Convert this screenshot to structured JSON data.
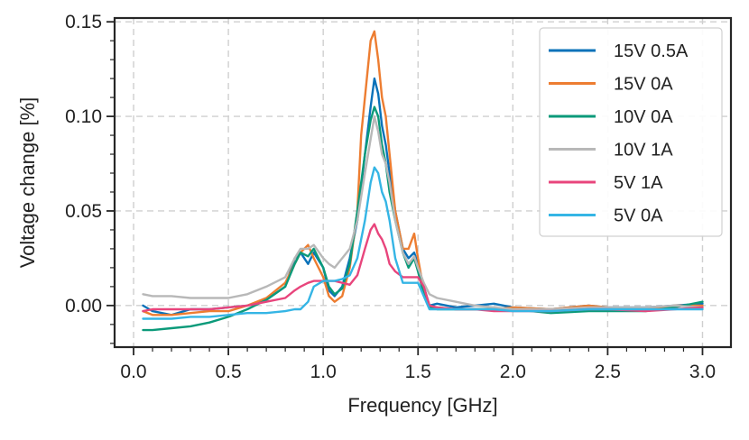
{
  "chart_data": {
    "type": "line",
    "title": "",
    "xlabel": "Frequency [GHz]",
    "ylabel": "Voltage change [%]",
    "xlim": [
      -0.1,
      3.15
    ],
    "ylim": [
      -0.022,
      0.152
    ],
    "grid": true,
    "legend_position": "top-right",
    "x_ticks": [
      0.0,
      0.5,
      1.0,
      1.5,
      2.0,
      2.5,
      3.0
    ],
    "x_tick_labels": [
      "0.0",
      "0.5",
      "1.0",
      "1.5",
      "2.0",
      "2.5",
      "3.0"
    ],
    "y_ticks": [
      0.0,
      0.05,
      0.1,
      0.15
    ],
    "y_tick_labels": [
      "0.00",
      "0.05",
      "0.10",
      "0.15"
    ],
    "series": [
      {
        "name": "15V 0.5A",
        "color": "#0a72b9",
        "points": [
          [
            0.05,
            0.0
          ],
          [
            0.1,
            -0.003
          ],
          [
            0.2,
            -0.005
          ],
          [
            0.3,
            -0.002
          ],
          [
            0.4,
            -0.002
          ],
          [
            0.5,
            -0.001
          ],
          [
            0.6,
            0.0
          ],
          [
            0.7,
            0.003
          ],
          [
            0.8,
            0.01
          ],
          [
            0.85,
            0.025
          ],
          [
            0.88,
            0.028
          ],
          [
            0.92,
            0.022
          ],
          [
            0.95,
            0.028
          ],
          [
            1.0,
            0.02
          ],
          [
            1.03,
            0.008
          ],
          [
            1.06,
            0.005
          ],
          [
            1.1,
            0.01
          ],
          [
            1.14,
            0.025
          ],
          [
            1.18,
            0.045
          ],
          [
            1.22,
            0.08
          ],
          [
            1.25,
            0.105
          ],
          [
            1.27,
            0.12
          ],
          [
            1.29,
            0.112
          ],
          [
            1.31,
            0.095
          ],
          [
            1.33,
            0.085
          ],
          [
            1.35,
            0.07
          ],
          [
            1.38,
            0.05
          ],
          [
            1.42,
            0.03
          ],
          [
            1.45,
            0.025
          ],
          [
            1.48,
            0.028
          ],
          [
            1.5,
            0.022
          ],
          [
            1.53,
            0.01
          ],
          [
            1.56,
            0.0
          ],
          [
            1.6,
            0.001
          ],
          [
            1.7,
            -0.001
          ],
          [
            1.8,
            0.0
          ],
          [
            1.9,
            0.001
          ],
          [
            2.0,
            -0.001
          ],
          [
            2.2,
            -0.002
          ],
          [
            2.4,
            0.0
          ],
          [
            2.5,
            -0.001
          ],
          [
            2.7,
            -0.001
          ],
          [
            2.85,
            0.0
          ],
          [
            3.0,
            0.001
          ]
        ]
      },
      {
        "name": "15V 0A",
        "color": "#ed7d31",
        "points": [
          [
            0.05,
            -0.003
          ],
          [
            0.1,
            -0.005
          ],
          [
            0.2,
            -0.005
          ],
          [
            0.3,
            -0.004
          ],
          [
            0.4,
            -0.003
          ],
          [
            0.5,
            -0.003
          ],
          [
            0.6,
            0.0
          ],
          [
            0.7,
            0.004
          ],
          [
            0.8,
            0.012
          ],
          [
            0.85,
            0.022
          ],
          [
            0.88,
            0.028
          ],
          [
            0.92,
            0.032
          ],
          [
            0.95,
            0.025
          ],
          [
            1.0,
            0.015
          ],
          [
            1.03,
            0.005
          ],
          [
            1.06,
            0.002
          ],
          [
            1.1,
            0.005
          ],
          [
            1.14,
            0.02
          ],
          [
            1.18,
            0.05
          ],
          [
            1.2,
            0.09
          ],
          [
            1.23,
            0.12
          ],
          [
            1.25,
            0.14
          ],
          [
            1.27,
            0.145
          ],
          [
            1.29,
            0.13
          ],
          [
            1.31,
            0.11
          ],
          [
            1.33,
            0.1
          ],
          [
            1.35,
            0.08
          ],
          [
            1.38,
            0.05
          ],
          [
            1.42,
            0.03
          ],
          [
            1.45,
            0.03
          ],
          [
            1.48,
            0.038
          ],
          [
            1.5,
            0.025
          ],
          [
            1.53,
            0.008
          ],
          [
            1.56,
            -0.001
          ],
          [
            1.6,
            -0.001
          ],
          [
            1.7,
            -0.002
          ],
          [
            1.8,
            -0.002
          ],
          [
            1.9,
            -0.002
          ],
          [
            2.0,
            -0.001
          ],
          [
            2.2,
            -0.002
          ],
          [
            2.4,
            0.0
          ],
          [
            2.5,
            -0.001
          ],
          [
            2.7,
            -0.002
          ],
          [
            2.85,
            0.0
          ],
          [
            3.0,
            0.0
          ]
        ]
      },
      {
        "name": "10V 0A",
        "color": "#0b9a7a",
        "points": [
          [
            0.05,
            -0.013
          ],
          [
            0.1,
            -0.013
          ],
          [
            0.2,
            -0.012
          ],
          [
            0.3,
            -0.011
          ],
          [
            0.4,
            -0.009
          ],
          [
            0.5,
            -0.006
          ],
          [
            0.6,
            -0.002
          ],
          [
            0.7,
            0.003
          ],
          [
            0.8,
            0.01
          ],
          [
            0.85,
            0.022
          ],
          [
            0.88,
            0.028
          ],
          [
            0.92,
            0.026
          ],
          [
            0.95,
            0.03
          ],
          [
            1.0,
            0.02
          ],
          [
            1.03,
            0.01
          ],
          [
            1.06,
            0.006
          ],
          [
            1.1,
            0.009
          ],
          [
            1.14,
            0.022
          ],
          [
            1.18,
            0.05
          ],
          [
            1.22,
            0.08
          ],
          [
            1.25,
            0.098
          ],
          [
            1.27,
            0.105
          ],
          [
            1.29,
            0.1
          ],
          [
            1.31,
            0.085
          ],
          [
            1.33,
            0.075
          ],
          [
            1.35,
            0.06
          ],
          [
            1.38,
            0.045
          ],
          [
            1.42,
            0.028
          ],
          [
            1.45,
            0.02
          ],
          [
            1.48,
            0.025
          ],
          [
            1.5,
            0.018
          ],
          [
            1.53,
            0.006
          ],
          [
            1.56,
            -0.001
          ],
          [
            1.6,
            -0.002
          ],
          [
            1.7,
            -0.002
          ],
          [
            1.8,
            -0.002
          ],
          [
            1.9,
            -0.002
          ],
          [
            2.0,
            -0.002
          ],
          [
            2.2,
            -0.004
          ],
          [
            2.4,
            -0.003
          ],
          [
            2.5,
            -0.003
          ],
          [
            2.7,
            -0.003
          ],
          [
            2.85,
            -0.001
          ],
          [
            3.0,
            0.002
          ]
        ]
      },
      {
        "name": "10V 1A",
        "color": "#b8b8b8",
        "points": [
          [
            0.05,
            0.006
          ],
          [
            0.1,
            0.005
          ],
          [
            0.2,
            0.005
          ],
          [
            0.3,
            0.004
          ],
          [
            0.4,
            0.004
          ],
          [
            0.5,
            0.004
          ],
          [
            0.6,
            0.006
          ],
          [
            0.7,
            0.01
          ],
          [
            0.8,
            0.015
          ],
          [
            0.85,
            0.025
          ],
          [
            0.88,
            0.03
          ],
          [
            0.92,
            0.03
          ],
          [
            0.95,
            0.032
          ],
          [
            1.0,
            0.025
          ],
          [
            1.03,
            0.022
          ],
          [
            1.06,
            0.02
          ],
          [
            1.1,
            0.025
          ],
          [
            1.14,
            0.03
          ],
          [
            1.18,
            0.045
          ],
          [
            1.22,
            0.07
          ],
          [
            1.25,
            0.088
          ],
          [
            1.27,
            0.1
          ],
          [
            1.29,
            0.092
          ],
          [
            1.31,
            0.08
          ],
          [
            1.33,
            0.075
          ],
          [
            1.35,
            0.065
          ],
          [
            1.38,
            0.045
          ],
          [
            1.42,
            0.028
          ],
          [
            1.45,
            0.022
          ],
          [
            1.48,
            0.026
          ],
          [
            1.5,
            0.02
          ],
          [
            1.53,
            0.012
          ],
          [
            1.56,
            0.006
          ],
          [
            1.6,
            0.004
          ],
          [
            1.7,
            0.002
          ],
          [
            1.8,
            0.0
          ],
          [
            1.9,
            -0.001
          ],
          [
            2.0,
            -0.002
          ],
          [
            2.2,
            -0.002
          ],
          [
            2.4,
            -0.001
          ],
          [
            2.5,
            -0.001
          ],
          [
            2.7,
            -0.001
          ],
          [
            2.85,
            0.0
          ],
          [
            3.0,
            -0.001
          ]
        ]
      },
      {
        "name": "5V 1A",
        "color": "#e8457c",
        "points": [
          [
            0.05,
            -0.003
          ],
          [
            0.1,
            -0.002
          ],
          [
            0.2,
            -0.002
          ],
          [
            0.3,
            -0.002
          ],
          [
            0.4,
            -0.002
          ],
          [
            0.5,
            -0.001
          ],
          [
            0.6,
            0.0
          ],
          [
            0.7,
            0.002
          ],
          [
            0.8,
            0.004
          ],
          [
            0.85,
            0.008
          ],
          [
            0.88,
            0.01
          ],
          [
            0.92,
            0.012
          ],
          [
            0.95,
            0.013
          ],
          [
            1.0,
            0.013
          ],
          [
            1.03,
            0.013
          ],
          [
            1.06,
            0.013
          ],
          [
            1.1,
            0.012
          ],
          [
            1.14,
            0.011
          ],
          [
            1.18,
            0.016
          ],
          [
            1.22,
            0.03
          ],
          [
            1.25,
            0.04
          ],
          [
            1.27,
            0.043
          ],
          [
            1.29,
            0.038
          ],
          [
            1.31,
            0.035
          ],
          [
            1.33,
            0.03
          ],
          [
            1.35,
            0.022
          ],
          [
            1.38,
            0.018
          ],
          [
            1.42,
            0.015
          ],
          [
            1.45,
            0.015
          ],
          [
            1.48,
            0.015
          ],
          [
            1.5,
            0.015
          ],
          [
            1.53,
            0.01
          ],
          [
            1.56,
            0.0
          ],
          [
            1.6,
            -0.001
          ],
          [
            1.7,
            -0.002
          ],
          [
            1.8,
            -0.002
          ],
          [
            1.9,
            -0.003
          ],
          [
            2.0,
            -0.003
          ],
          [
            2.2,
            -0.003
          ],
          [
            2.4,
            -0.002
          ],
          [
            2.5,
            -0.002
          ],
          [
            2.7,
            -0.003
          ],
          [
            2.85,
            -0.002
          ],
          [
            3.0,
            -0.001
          ]
        ]
      },
      {
        "name": "5V 0A",
        "color": "#35b5e5",
        "points": [
          [
            0.05,
            -0.007
          ],
          [
            0.1,
            -0.007
          ],
          [
            0.2,
            -0.007
          ],
          [
            0.3,
            -0.006
          ],
          [
            0.4,
            -0.006
          ],
          [
            0.5,
            -0.005
          ],
          [
            0.6,
            -0.004
          ],
          [
            0.7,
            -0.004
          ],
          [
            0.8,
            -0.003
          ],
          [
            0.85,
            -0.002
          ],
          [
            0.88,
            -0.002
          ],
          [
            0.92,
            0.002
          ],
          [
            0.95,
            0.01
          ],
          [
            1.0,
            0.013
          ],
          [
            1.03,
            0.013
          ],
          [
            1.06,
            0.013
          ],
          [
            1.1,
            0.014
          ],
          [
            1.14,
            0.016
          ],
          [
            1.18,
            0.025
          ],
          [
            1.22,
            0.045
          ],
          [
            1.25,
            0.065
          ],
          [
            1.27,
            0.073
          ],
          [
            1.29,
            0.07
          ],
          [
            1.31,
            0.06
          ],
          [
            1.33,
            0.055
          ],
          [
            1.35,
            0.045
          ],
          [
            1.38,
            0.025
          ],
          [
            1.42,
            0.012
          ],
          [
            1.45,
            0.012
          ],
          [
            1.48,
            0.012
          ],
          [
            1.5,
            0.012
          ],
          [
            1.53,
            0.005
          ],
          [
            1.56,
            -0.002
          ],
          [
            1.6,
            -0.002
          ],
          [
            1.7,
            -0.002
          ],
          [
            1.8,
            -0.002
          ],
          [
            1.9,
            -0.002
          ],
          [
            2.0,
            -0.003
          ],
          [
            2.2,
            -0.003
          ],
          [
            2.4,
            -0.002
          ],
          [
            2.5,
            -0.002
          ],
          [
            2.7,
            -0.002
          ],
          [
            2.85,
            -0.002
          ],
          [
            3.0,
            -0.002
          ]
        ]
      }
    ]
  }
}
